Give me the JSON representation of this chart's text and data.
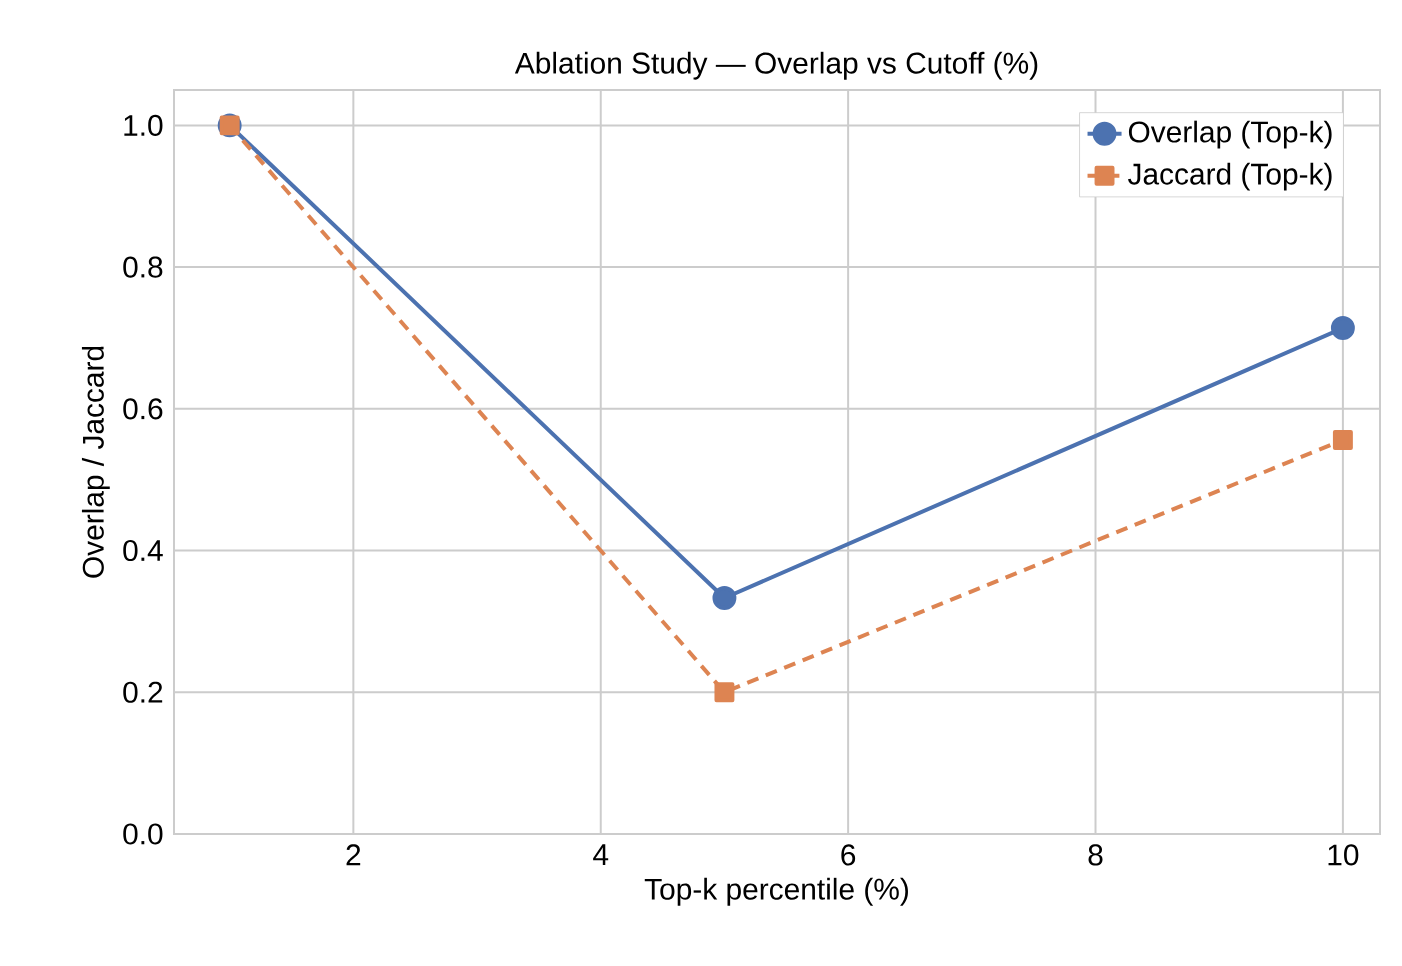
{
  "chart_data": {
    "type": "line",
    "title": "Ablation Study — Overlap vs Cutoff (%)",
    "xlabel": "Top-k percentile (%)",
    "ylabel": "Overlap / Jaccard",
    "x": [
      1,
      5,
      10
    ],
    "series": [
      {
        "name": "Overlap (Top-k)",
        "color": "#4c72b0",
        "values": [
          1.0,
          0.333,
          0.714
        ],
        "marker": "circle",
        "line_style": "solid"
      },
      {
        "name": "Jaccard (Top-k)",
        "color": "#dd8452",
        "values": [
          1.0,
          0.2,
          0.556
        ],
        "marker": "square",
        "line_style": "dashed"
      }
    ],
    "xlim": [
      0.55,
      10.3
    ],
    "ylim": [
      0,
      1.05
    ],
    "xticks": [
      2,
      4,
      6,
      8,
      10
    ],
    "yticks": [
      {
        "value": 0,
        "label": "0.0"
      },
      0.2,
      0.4,
      0.6,
      0.8,
      {
        "value": 1,
        "label": "1.0"
      }
    ],
    "grid": true,
    "legend": "top right"
  }
}
